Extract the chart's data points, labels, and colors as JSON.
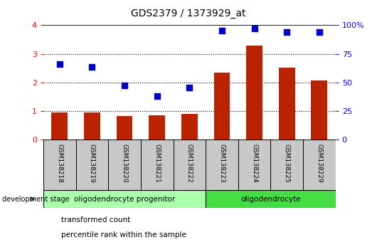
{
  "title": "GDS2379 / 1373929_at",
  "samples": [
    "GSM138218",
    "GSM138219",
    "GSM138220",
    "GSM138221",
    "GSM138222",
    "GSM138223",
    "GSM138224",
    "GSM138225",
    "GSM138229"
  ],
  "transformed_count": [
    0.95,
    0.95,
    0.82,
    0.85,
    0.9,
    2.35,
    3.28,
    2.52,
    2.08
  ],
  "percentile_rank": [
    2.65,
    2.55,
    1.9,
    1.52,
    1.82,
    3.82,
    3.88,
    3.77,
    3.75
  ],
  "bar_color": "#bb2200",
  "dot_color": "#0000cc",
  "ylim_left": [
    0,
    4
  ],
  "yticks_left": [
    0,
    1,
    2,
    3,
    4
  ],
  "yticks_right": [
    0,
    25,
    50,
    75,
    100
  ],
  "ytick_labels_right": [
    "0",
    "25",
    "50",
    "75",
    "100%"
  ],
  "grid_yticks": [
    1,
    2,
    3
  ],
  "groups": [
    {
      "label": "oligodendrocyte progenitor",
      "start": 0,
      "end": 5,
      "color": "#aaffaa"
    },
    {
      "label": "oligodendrocyte",
      "start": 5,
      "end": 9,
      "color": "#44dd44"
    }
  ],
  "development_stage_label": "development stage",
  "legend_items": [
    {
      "label": "transformed count",
      "color": "#bb2200"
    },
    {
      "label": "percentile rank within the sample",
      "color": "#0000cc"
    }
  ],
  "tick_bg_color": "#c8c8c8",
  "bar_width": 0.5,
  "dot_size": 35,
  "left_axis_color": "red",
  "right_axis_color": "blue"
}
